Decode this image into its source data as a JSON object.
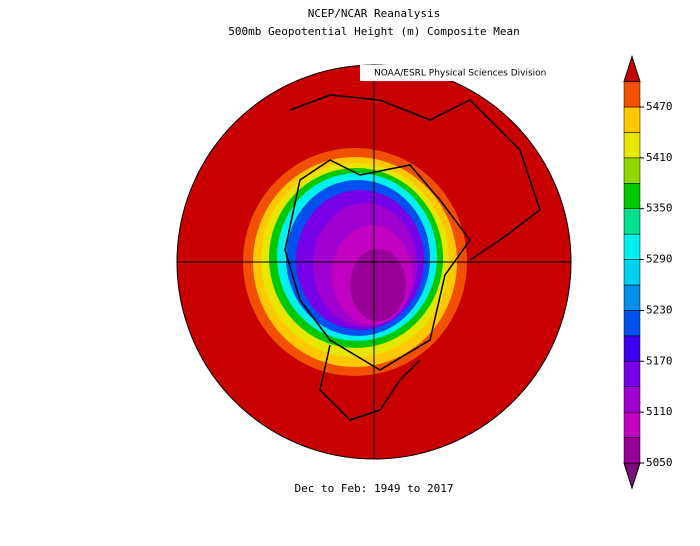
{
  "header": {
    "title": "NCEP/NCAR Reanalysis",
    "subtitle": "500mb Geopotential Height (m) Composite Mean"
  },
  "credit": "NOAA/ESRL Physical Sciences Division",
  "period": "Dec to Feb: 1949 to 2017",
  "colorbar": {
    "ticks": [
      5050,
      5110,
      5170,
      5230,
      5290,
      5350,
      5410,
      5470
    ],
    "colors": [
      "#7a0f7a",
      "#990099",
      "#c200c2",
      "#a000d0",
      "#7800e8",
      "#3c00f0",
      "#0050f0",
      "#0090e8",
      "#00d0f0",
      "#00f0f0",
      "#00e090",
      "#00c800",
      "#90d800",
      "#e6e600",
      "#ffc800",
      "#f05000",
      "#c80000"
    ]
  }
}
